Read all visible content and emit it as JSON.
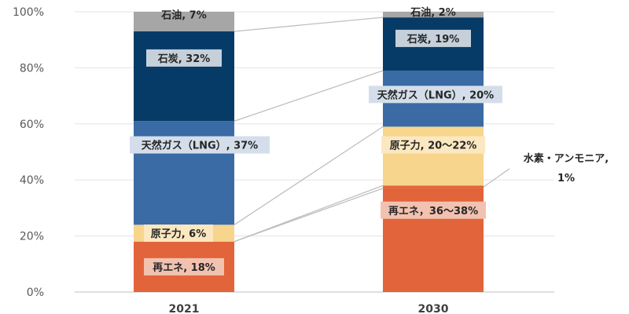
{
  "chart_data": {
    "type": "bar",
    "stacked": true,
    "categories": [
      "2021",
      "2030"
    ],
    "ylim": [
      0,
      100
    ],
    "yticks": [
      "0%",
      "20%",
      "40%",
      "60%",
      "80%",
      "100%"
    ],
    "grid": true,
    "series": [
      {
        "key": "renewable",
        "color": "#E2643A",
        "values": [
          18,
          37
        ],
        "labels": [
          "再エネ, 18%",
          "再エネ，36～38%"
        ]
      },
      {
        "key": "hydrogen",
        "color": "#E2643A",
        "values": [
          0,
          1
        ],
        "labels": [
          "",
          "水素・アンモニア, 1%"
        ]
      },
      {
        "key": "nuclear",
        "color": "#F7D58D",
        "values": [
          6,
          21
        ],
        "labels": [
          "原子力, 6%",
          "原子力, 20～22%"
        ]
      },
      {
        "key": "lng",
        "color": "#3A6BA5",
        "values": [
          37,
          20
        ],
        "labels": [
          "天然ガス（LNG）, 37%",
          "天然ガス（LNG）, 20%"
        ]
      },
      {
        "key": "coal",
        "color": "#073B67",
        "values": [
          32,
          19
        ],
        "labels": [
          "石炭, 32%",
          "石炭, 19%"
        ]
      },
      {
        "key": "oil",
        "color": "#A6A6A6",
        "values": [
          7,
          2
        ],
        "labels": [
          "石油, 7%",
          "石油, 2%"
        ]
      }
    ]
  }
}
